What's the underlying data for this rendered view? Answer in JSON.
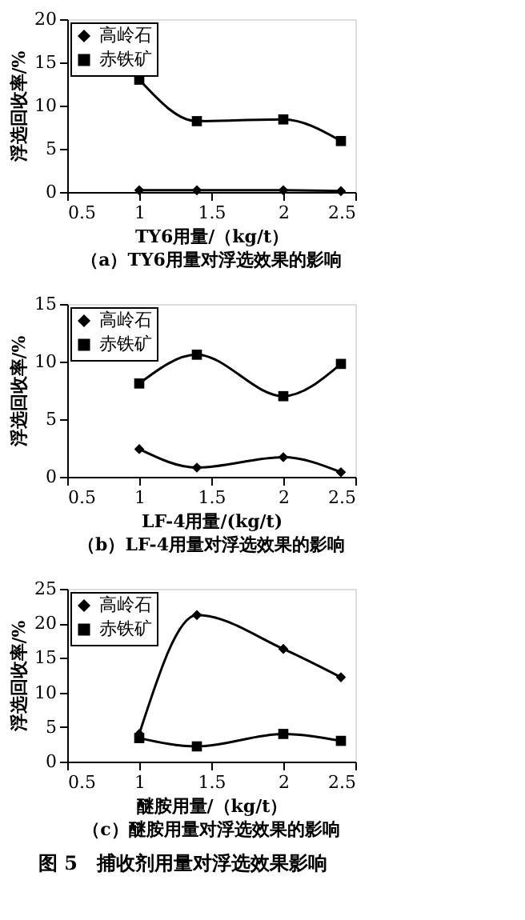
{
  "chart_data": [
    {
      "type": "line",
      "title": "（a）TY6用量对浮选效果的影响",
      "xlabel": "TY6用量/（kg/t）",
      "ylabel": "浮选回收率/%",
      "x": [
        1,
        1.4,
        2,
        2.4
      ],
      "xlim": [
        0.5,
        2.5
      ],
      "xticks": [
        0.5,
        1,
        1.5,
        2,
        2.5
      ],
      "ylim": [
        0,
        20
      ],
      "yticks": [
        0,
        5,
        10,
        15,
        20
      ],
      "grid": false,
      "legend": "top left",
      "line_style": "solid",
      "series": [
        {
          "name": "高岭石",
          "color": "#000000",
          "marker": "diamond",
          "values": [
            0.2,
            0.2,
            0.2,
            0.1
          ]
        },
        {
          "name": "赤铁矿",
          "color": "#000000",
          "marker": "square",
          "values": [
            13,
            8.2,
            8.4,
            5.9
          ]
        }
      ]
    },
    {
      "type": "line",
      "title": "（b）LF-4用量对浮选效果的影响",
      "xlabel": "LF-4用量/(kg/t)",
      "ylabel": "浮选回收率/%",
      "x": [
        1,
        1.4,
        2,
        2.4
      ],
      "xlim": [
        0.5,
        2.5
      ],
      "xticks": [
        0.5,
        1,
        1.5,
        2,
        2.5
      ],
      "ylim": [
        0,
        15
      ],
      "yticks": [
        0,
        5,
        10,
        15
      ],
      "grid": false,
      "legend": "top left",
      "line_style": "solid",
      "series": [
        {
          "name": "高岭石",
          "color": "#000000",
          "marker": "diamond",
          "values": [
            2.4,
            0.8,
            1.7,
            0.4
          ]
        },
        {
          "name": "赤铁矿",
          "color": "#000000",
          "marker": "square",
          "values": [
            8.1,
            10.6,
            7.0,
            9.8
          ]
        }
      ]
    },
    {
      "type": "line",
      "title": "（c）醚胺用量对浮选效果的影响",
      "xlabel": "醚胺用量/（kg/t）",
      "ylabel": "浮选回收率/%",
      "x": [
        1,
        1.4,
        2,
        2.4
      ],
      "xlim": [
        0.5,
        2.5
      ],
      "xticks": [
        0.5,
        1,
        1.5,
        2,
        2.5
      ],
      "ylim": [
        0,
        25
      ],
      "yticks": [
        0,
        5,
        10,
        15,
        20,
        25
      ],
      "grid": false,
      "legend": "top left",
      "line_style": "solid",
      "annotations": [
        "图 5　捕收剂用量对浮选效果影响"
      ],
      "series": [
        {
          "name": "高岭石",
          "color": "#000000",
          "marker": "diamond",
          "values": [
            4,
            21.2,
            16.3,
            12.2
          ]
        },
        {
          "name": "赤铁矿",
          "color": "#000000",
          "marker": "square",
          "values": [
            3.4,
            2.2,
            4.0,
            3.0
          ]
        }
      ]
    }
  ]
}
